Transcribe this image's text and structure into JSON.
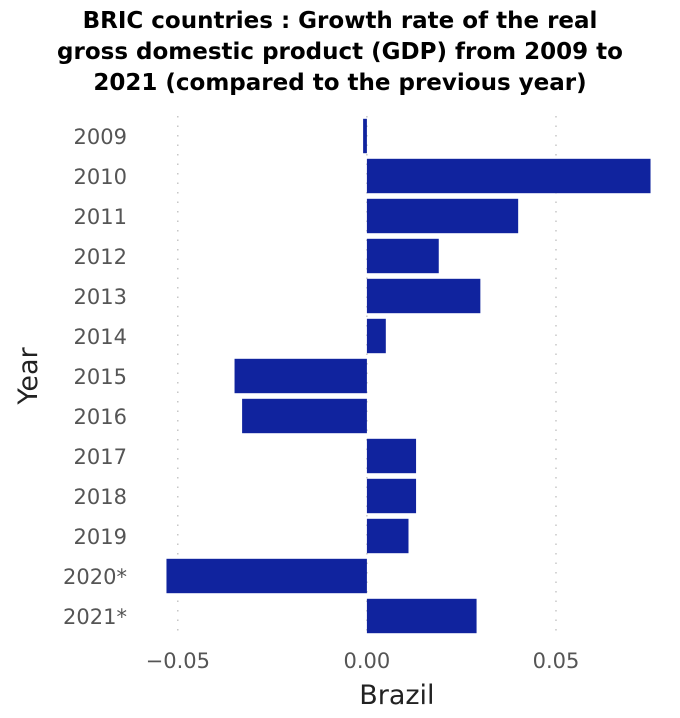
{
  "chart_data": {
    "type": "bar",
    "orientation": "horizontal",
    "title_lines": [
      "BRIC countries : Growth rate of the real",
      "gross domestic product (GDP) from 2009 to",
      "2021 (compared to the previous year)"
    ],
    "xlabel": "Brazil",
    "ylabel": "Year",
    "categories": [
      "2009",
      "2010",
      "2011",
      "2012",
      "2013",
      "2014",
      "2015",
      "2016",
      "2017",
      "2018",
      "2019",
      "2020*",
      "2021*"
    ],
    "values": [
      -0.001,
      0.075,
      0.04,
      0.019,
      0.03,
      0.005,
      -0.035,
      -0.033,
      0.013,
      0.013,
      0.011,
      -0.053,
      0.029
    ],
    "xlim": [
      -0.06,
      0.082
    ],
    "xticks": [
      -0.05,
      0.0,
      0.05
    ],
    "xtick_labels": [
      "−0.05",
      "0.00",
      "0.05"
    ],
    "grid": true,
    "bar_color": "#10239e"
  }
}
